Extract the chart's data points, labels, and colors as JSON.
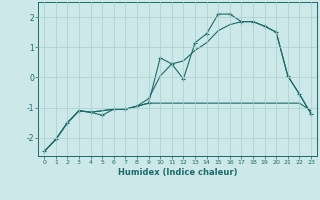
{
  "xlabel": "Humidex (Indice chaleur)",
  "background_color": "#cce8e8",
  "grid_color": "#aacece",
  "line_color": "#1a6b6b",
  "xlim": [
    -0.5,
    23.5
  ],
  "ylim": [
    -2.6,
    2.5
  ],
  "xticks": [
    0,
    1,
    2,
    3,
    4,
    5,
    6,
    7,
    8,
    9,
    10,
    11,
    12,
    13,
    14,
    15,
    16,
    17,
    18,
    19,
    20,
    21,
    22,
    23
  ],
  "yticks": [
    -2,
    -1,
    0,
    1,
    2
  ],
  "series1_x": [
    0,
    1,
    2,
    3,
    4,
    5,
    6,
    7,
    8,
    9,
    10,
    11,
    12,
    13,
    14,
    15,
    16,
    17,
    18,
    19,
    20,
    21,
    22,
    23
  ],
  "series1_y": [
    -2.45,
    -2.05,
    -1.5,
    -1.1,
    -1.15,
    -1.25,
    -1.05,
    -1.05,
    -0.95,
    -0.85,
    0.65,
    0.45,
    -0.05,
    1.15,
    1.45,
    2.1,
    2.1,
    1.85,
    1.85,
    1.7,
    1.5,
    0.05,
    -0.55,
    -1.2
  ],
  "series2_x": [
    0,
    1,
    2,
    3,
    4,
    5,
    6,
    7,
    8,
    9,
    10,
    11,
    12,
    13,
    14,
    15,
    16,
    17,
    18,
    19,
    20,
    21,
    22,
    23
  ],
  "series2_y": [
    -2.45,
    -2.05,
    -1.5,
    -1.1,
    -1.15,
    -1.1,
    -1.05,
    -1.05,
    -0.95,
    -0.85,
    -0.85,
    -0.85,
    -0.85,
    -0.85,
    -0.85,
    -0.85,
    -0.85,
    -0.85,
    -0.85,
    -0.85,
    -0.85,
    -0.85,
    -0.85,
    -1.1
  ],
  "series3_x": [
    0,
    1,
    2,
    3,
    4,
    5,
    6,
    7,
    8,
    9,
    10,
    11,
    12,
    13,
    14,
    15,
    16,
    17,
    18,
    19,
    20,
    21,
    22,
    23
  ],
  "series3_y": [
    -2.45,
    -2.05,
    -1.5,
    -1.1,
    -1.15,
    -1.1,
    -1.05,
    -1.05,
    -0.95,
    -0.7,
    0.05,
    0.45,
    0.55,
    0.9,
    1.15,
    1.55,
    1.75,
    1.85,
    1.85,
    1.7,
    1.5,
    0.05,
    -0.55,
    -1.2
  ]
}
